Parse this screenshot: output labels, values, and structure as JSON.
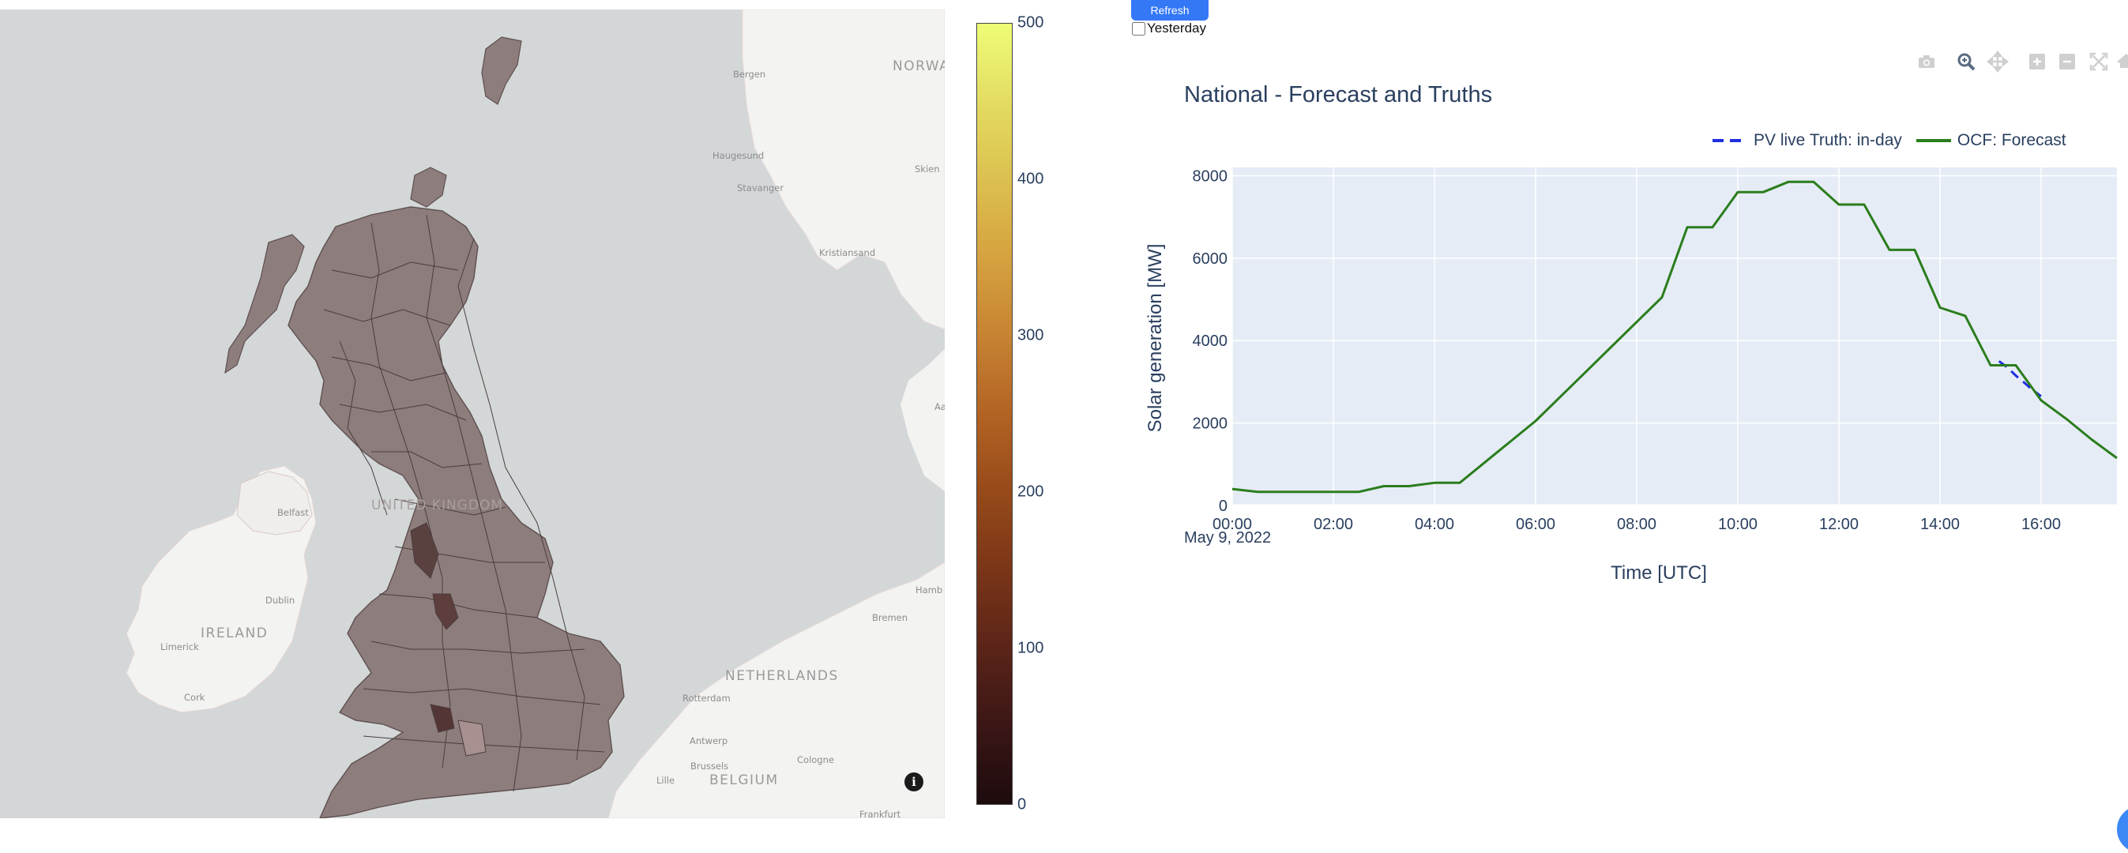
{
  "controls": {
    "refresh_label": "Refresh",
    "yesterday_label": "Yesterday",
    "yesterday_checked": false
  },
  "map": {
    "labels": {
      "norway": "NORWA",
      "bergen": "Bergen",
      "haugesund": "Haugesund",
      "stavanger": "Stavanger",
      "skien": "Skien",
      "kristiansand": "Kristiansand",
      "united_kingdom": "UNITED KINGDOM",
      "belfast": "Belfast",
      "dublin": "Dublin",
      "ireland": "IRELAND",
      "limerick": "Limerick",
      "cork": "Cork",
      "netherlands": "NETHERLANDS",
      "rotterdam": "Rotterdam",
      "antwerp": "Antwerp",
      "brussels": "Brussels",
      "belgium": "BELGIUM",
      "lille": "Lille",
      "cologne": "Cologne",
      "bremen": "Bremen",
      "hamburg": "Hamb",
      "frankfurt": "Frankfurt",
      "aa": "Aa"
    },
    "info_icon": "info-icon",
    "colorbar": {
      "ticks": [
        "500",
        "400",
        "300",
        "200",
        "100",
        "0"
      ],
      "range": [
        0,
        500
      ],
      "colors": [
        "#1d0b0d",
        "#7a3518",
        "#c78332",
        "#eefc76"
      ]
    }
  },
  "modebar": {
    "icons": [
      "camera-icon",
      "zoom-icon",
      "pan-icon",
      "zoom-in-icon",
      "zoom-out-icon",
      "autoscale-icon",
      "home-icon"
    ]
  },
  "chart_data": {
    "type": "line",
    "title": "National - Forecast and Truths",
    "xlabel": "Time [UTC]",
    "ylabel": "Solar generation [MW]",
    "date_label": "May 9, 2022",
    "x_ticks": [
      "00:00",
      "02:00",
      "04:00",
      "06:00",
      "08:00",
      "10:00",
      "12:00",
      "14:00",
      "16:00"
    ],
    "y_ticks": [
      "0",
      "2000",
      "4000",
      "6000",
      "8000"
    ],
    "xlim": [
      "00:00",
      "17:30"
    ],
    "ylim": [
      0,
      8200
    ],
    "grid": true,
    "legend_position": "top-right",
    "series": [
      {
        "name": "PV live Truth: in-day",
        "style": "dashed",
        "color": "#1f2fe0",
        "x": [
          "15:10",
          "15:20",
          "15:30",
          "15:40",
          "15:50",
          "16:00"
        ],
        "y": [
          3500,
          3350,
          3150,
          2980,
          2800,
          2650
        ]
      },
      {
        "name": "OCF: Forecast",
        "style": "solid",
        "color": "#2a7d1c",
        "x": [
          "00:00",
          "00:30",
          "01:00",
          "01:30",
          "02:00",
          "02:30",
          "03:00",
          "03:30",
          "04:00",
          "04:30",
          "05:00",
          "05:30",
          "06:00",
          "06:30",
          "07:00",
          "07:30",
          "08:00",
          "08:30",
          "09:00",
          "09:30",
          "10:00",
          "10:30",
          "11:00",
          "11:30",
          "12:00",
          "12:30",
          "13:00",
          "13:30",
          "14:00",
          "14:30",
          "15:00",
          "15:30",
          "16:00",
          "16:30",
          "17:00",
          "17:30"
        ],
        "y": [
          400,
          330,
          330,
          330,
          330,
          330,
          470,
          470,
          550,
          550,
          1050,
          1550,
          2050,
          2650,
          3250,
          3850,
          4450,
          5050,
          6750,
          6750,
          7600,
          7600,
          7850,
          7850,
          7300,
          7300,
          6200,
          6200,
          4800,
          4600,
          3400,
          3400,
          2550,
          2100,
          1600,
          1150
        ]
      }
    ]
  }
}
